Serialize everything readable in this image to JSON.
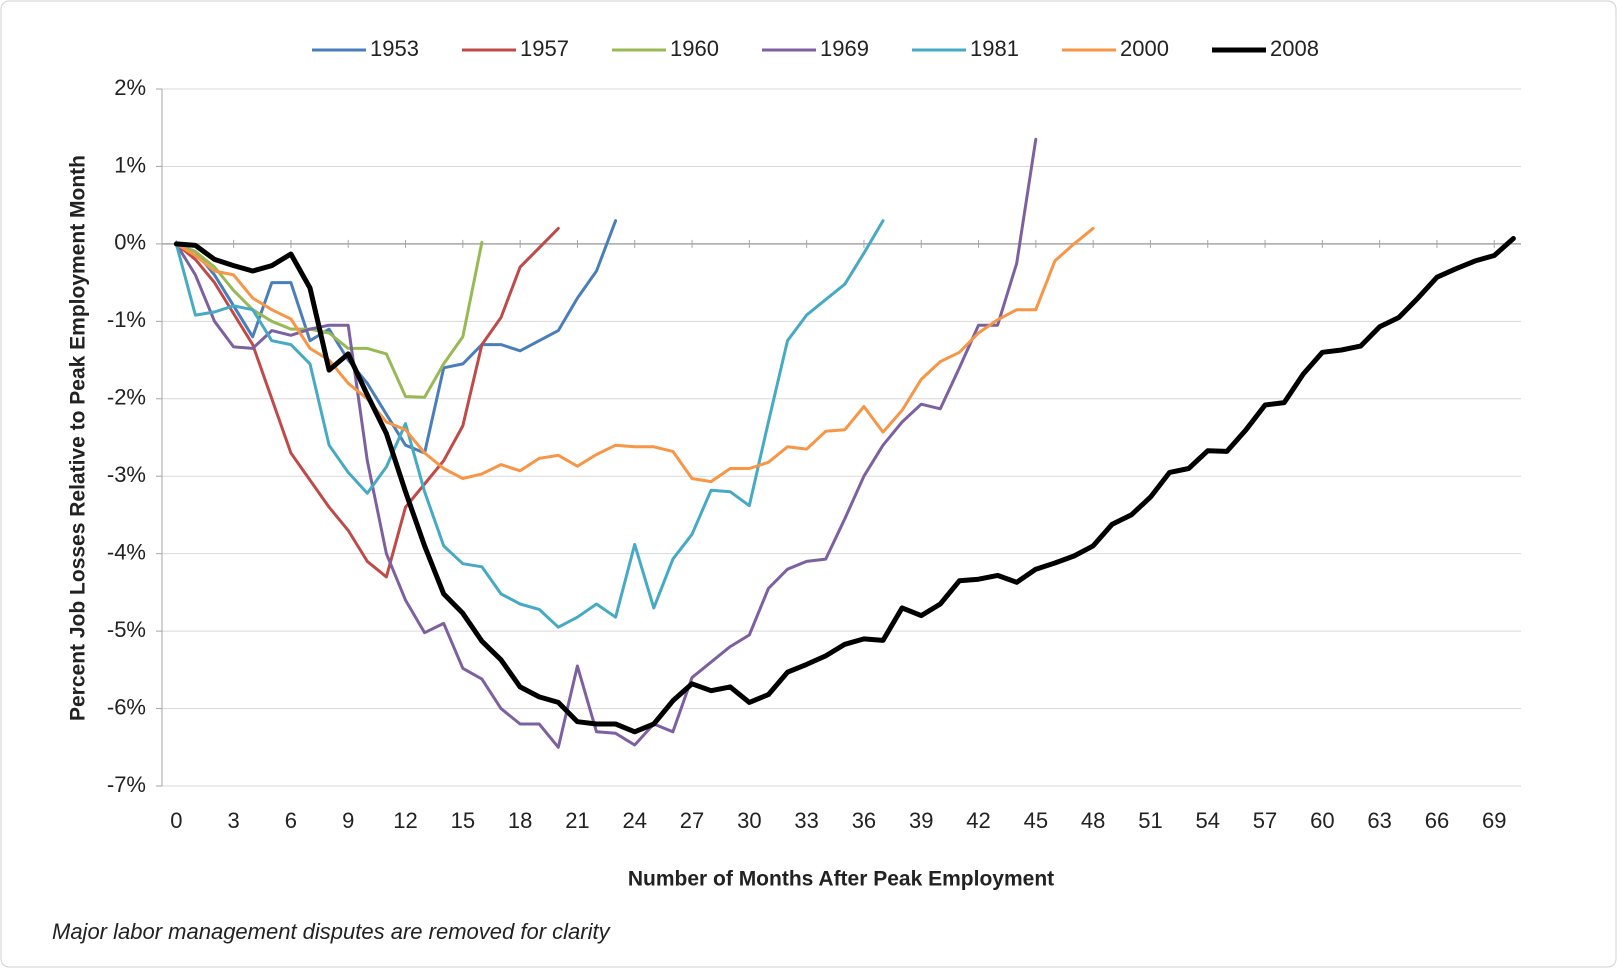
{
  "chart_data": {
    "type": "line",
    "xlabel": "Number of Months After Peak Employment",
    "ylabel": "Percent Job Losses Relative to Peak Employment Month",
    "note": "Major labor management disputes are removed for clarity",
    "x": [
      0,
      1,
      2,
      3,
      4,
      5,
      6,
      7,
      8,
      9,
      10,
      11,
      12,
      13,
      14,
      15,
      16,
      17,
      18,
      19,
      20,
      21,
      22,
      23,
      24,
      25,
      26,
      27,
      28,
      29,
      30,
      31,
      32,
      33,
      34,
      35,
      36,
      37,
      38,
      39,
      40,
      41,
      42,
      43,
      44,
      45,
      46,
      47,
      48,
      49,
      50,
      51,
      52,
      53,
      54,
      55,
      56,
      57,
      58,
      59,
      60,
      61,
      62,
      63,
      64,
      65,
      66,
      67,
      68,
      69,
      70
    ],
    "xlim": [
      -0.75,
      70.4
    ],
    "xticks": [
      0,
      3,
      6,
      9,
      12,
      15,
      18,
      21,
      24,
      27,
      30,
      33,
      36,
      39,
      42,
      45,
      48,
      51,
      54,
      57,
      60,
      63,
      66,
      69
    ],
    "ylim": [
      -7,
      2
    ],
    "yticks": [
      {
        "value": -7,
        "label": "-7%"
      },
      {
        "value": -6,
        "label": "-6%"
      },
      {
        "value": -5,
        "label": "-5%"
      },
      {
        "value": -4,
        "label": "-4%"
      },
      {
        "value": -3,
        "label": "-3%"
      },
      {
        "value": -2,
        "label": "-2%"
      },
      {
        "value": -1,
        "label": "-1%"
      },
      {
        "value": 0,
        "label": "0%"
      },
      {
        "value": 1,
        "label": "1%"
      },
      {
        "value": 2,
        "label": "2%"
      }
    ],
    "grid": true,
    "legend": "top",
    "series": [
      {
        "name": "1953",
        "color": "#4a7ebb",
        "width": 3,
        "values": [
          0,
          -0.1,
          -0.4,
          -0.8,
          -1.2,
          -0.5,
          -0.5,
          -1.25,
          -1.1,
          -1.5,
          -1.8,
          -2.2,
          -2.6,
          -2.7,
          -1.6,
          -1.55,
          -1.3,
          -1.3,
          -1.38,
          -1.25,
          -1.12,
          -0.7,
          -0.35,
          0.3,
          null,
          null,
          null,
          null,
          null,
          null,
          null,
          null,
          null,
          null,
          null,
          null,
          null,
          null,
          null,
          null,
          null,
          null,
          null,
          null,
          null,
          null,
          null,
          null,
          null,
          null,
          null,
          null,
          null,
          null,
          null,
          null,
          null,
          null,
          null,
          null,
          null,
          null,
          null,
          null,
          null,
          null,
          null,
          null,
          null,
          null,
          null
        ]
      },
      {
        "name": "1957",
        "color": "#be4b48",
        "width": 3,
        "values": [
          0,
          -0.2,
          -0.5,
          -0.9,
          -1.3,
          -2.0,
          -2.7,
          -3.05,
          -3.4,
          -3.7,
          -4.1,
          -4.3,
          -3.4,
          -3.1,
          -2.8,
          -2.35,
          -1.3,
          -0.95,
          -0.3,
          -0.05,
          0.2,
          null,
          null,
          null,
          null,
          null,
          null,
          null,
          null,
          null,
          null,
          null,
          null,
          null,
          null,
          null,
          null,
          null,
          null,
          null,
          null,
          null,
          null,
          null,
          null,
          null,
          null,
          null,
          null,
          null,
          null,
          null,
          null,
          null,
          null,
          null,
          null,
          null,
          null,
          null,
          null,
          null,
          null,
          null,
          null,
          null,
          null,
          null,
          null,
          null,
          null
        ]
      },
      {
        "name": "1960",
        "color": "#98b954",
        "width": 3,
        "values": [
          0,
          -0.1,
          -0.3,
          -0.6,
          -0.85,
          -1.0,
          -1.1,
          -1.1,
          -1.15,
          -1.35,
          -1.35,
          -1.42,
          -1.97,
          -1.98,
          -1.55,
          -1.2,
          0.02,
          null,
          null,
          null,
          null,
          null,
          null,
          null,
          null,
          null,
          null,
          null,
          null,
          null,
          null,
          null,
          null,
          null,
          null,
          null,
          null,
          null,
          null,
          null,
          null,
          null,
          null,
          null,
          null,
          null,
          null,
          null,
          null,
          null,
          null,
          null,
          null,
          null,
          null,
          null,
          null,
          null,
          null,
          null,
          null,
          null,
          null,
          null,
          null,
          null,
          null,
          null,
          null,
          null,
          null
        ]
      },
      {
        "name": "1969",
        "color": "#7d60a0",
        "width": 3,
        "values": [
          0,
          -0.4,
          -1.0,
          -1.33,
          -1.35,
          -1.12,
          -1.18,
          -1.1,
          -1.05,
          -1.05,
          -2.8,
          -4.0,
          -4.6,
          -5.02,
          -4.9,
          -5.48,
          -5.62,
          -6.0,
          -6.2,
          -6.2,
          -6.5,
          -5.45,
          -6.3,
          -6.32,
          -6.47,
          -6.2,
          -6.3,
          -5.6,
          -5.4,
          -5.2,
          -5.05,
          -4.45,
          -4.2,
          -4.1,
          -4.07,
          -3.55,
          -3.0,
          -2.6,
          -2.3,
          -2.07,
          -2.13,
          -1.6,
          -1.05,
          -1.05,
          -0.25,
          1.35,
          null,
          null,
          null,
          null,
          null,
          null,
          null,
          null,
          null,
          null,
          null,
          null,
          null,
          null,
          null,
          null,
          null,
          null,
          null,
          null,
          null,
          null,
          null,
          null,
          null
        ]
      },
      {
        "name": "1981",
        "color": "#46aac5",
        "width": 3,
        "values": [
          0,
          -0.92,
          -0.88,
          -0.8,
          -0.85,
          -1.25,
          -1.3,
          -1.55,
          -2.6,
          -2.95,
          -3.22,
          -2.88,
          -2.32,
          -3.2,
          -3.9,
          -4.13,
          -4.17,
          -4.52,
          -4.65,
          -4.72,
          -4.95,
          -4.82,
          -4.65,
          -4.82,
          -3.88,
          -4.7,
          -4.07,
          -3.75,
          -3.18,
          -3.2,
          -3.38,
          -2.3,
          -1.25,
          -0.92,
          -0.72,
          -0.52,
          -0.12,
          0.3,
          null,
          null,
          null,
          null,
          null,
          null,
          null,
          null,
          null,
          null,
          null,
          null,
          null,
          null,
          null,
          null,
          null,
          null,
          null,
          null,
          null,
          null,
          null,
          null,
          null,
          null,
          null,
          null,
          null,
          null,
          null,
          null,
          null
        ]
      },
      {
        "name": "2000",
        "color": "#f79646",
        "width": 3,
        "values": [
          0,
          -0.15,
          -0.35,
          -0.4,
          -0.7,
          -0.85,
          -0.97,
          -1.35,
          -1.5,
          -1.8,
          -2.0,
          -2.3,
          -2.4,
          -2.7,
          -2.9,
          -3.03,
          -2.97,
          -2.85,
          -2.93,
          -2.77,
          -2.73,
          -2.87,
          -2.72,
          -2.6,
          -2.62,
          -2.62,
          -2.68,
          -3.03,
          -3.07,
          -2.9,
          -2.9,
          -2.82,
          -2.62,
          -2.65,
          -2.42,
          -2.4,
          -2.1,
          -2.43,
          -2.15,
          -1.75,
          -1.52,
          -1.4,
          -1.15,
          -0.98,
          -0.85,
          -0.85,
          -0.22,
          0.0,
          0.2,
          null,
          null,
          null,
          null,
          null,
          null,
          null,
          null,
          null,
          null,
          null,
          null,
          null,
          null,
          null,
          null,
          null,
          null,
          null,
          null,
          null,
          null
        ]
      },
      {
        "name": "2008",
        "color": "#000000",
        "width": 5,
        "values": [
          0,
          -0.02,
          -0.2,
          -0.28,
          -0.35,
          -0.28,
          -0.13,
          -0.57,
          -1.63,
          -1.42,
          -1.95,
          -2.45,
          -3.2,
          -3.9,
          -4.52,
          -4.77,
          -5.13,
          -5.37,
          -5.72,
          -5.85,
          -5.92,
          -6.17,
          -6.2,
          -6.2,
          -6.3,
          -6.2,
          -5.9,
          -5.68,
          -5.77,
          -5.72,
          -5.92,
          -5.82,
          -5.53,
          -5.43,
          -5.32,
          -5.17,
          -5.1,
          -5.12,
          -4.7,
          -4.8,
          -4.65,
          -4.35,
          -4.33,
          -4.28,
          -4.37,
          -4.2,
          -4.12,
          -4.03,
          -3.9,
          -3.62,
          -3.5,
          -3.27,
          -2.95,
          -2.9,
          -2.67,
          -2.68,
          -2.4,
          -2.08,
          -2.05,
          -1.68,
          -1.4,
          -1.37,
          -1.32,
          -1.07,
          -0.95,
          -0.7,
          -0.43,
          -0.32,
          -0.22,
          -0.15,
          0.07
        ]
      }
    ]
  }
}
